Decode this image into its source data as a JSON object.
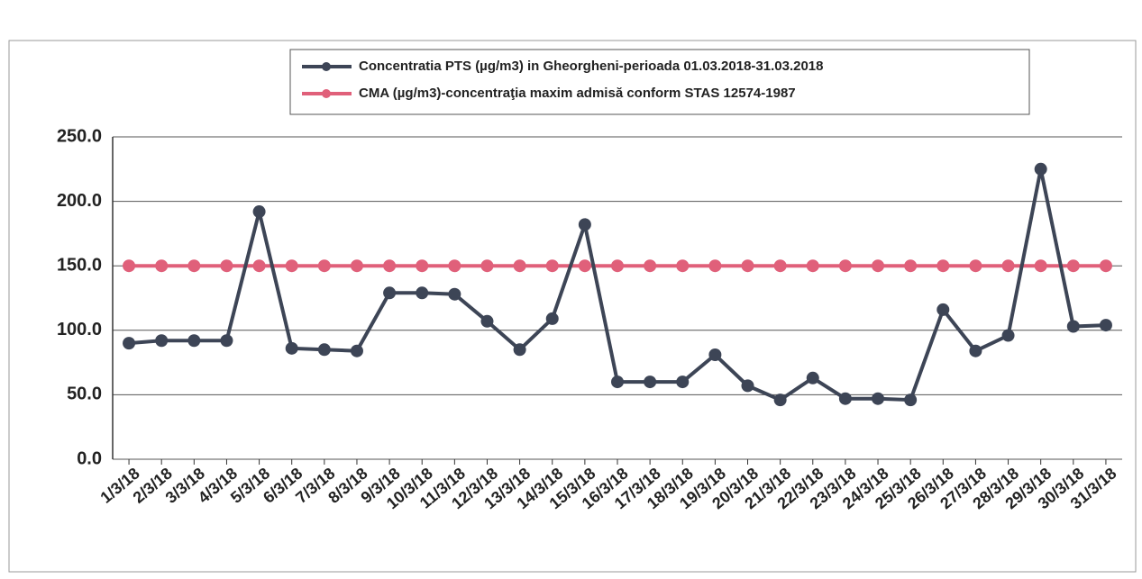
{
  "chart_data": {
    "type": "line",
    "categories": [
      "1/3/18",
      "2/3/18",
      "3/3/18",
      "4/3/18",
      "5/3/18",
      "6/3/18",
      "7/3/18",
      "8/3/18",
      "9/3/18",
      "10/3/18",
      "11/3/18",
      "12/3/18",
      "13/3/18",
      "14/3/18",
      "15/3/18",
      "16/3/18",
      "17/3/18",
      "18/3/18",
      "19/3/18",
      "20/3/18",
      "21/3/18",
      "22/3/18",
      "23/3/18",
      "24/3/18",
      "25/3/18",
      "26/3/18",
      "27/3/18",
      "28/3/18",
      "29/3/18",
      "30/3/18",
      "31/3/18"
    ],
    "series": [
      {
        "name": "Concentratia PTS (µg/m3) in Gheorgheni-perioada 01.03.2018-31.03.2018",
        "color": "#3d4556",
        "values": [
          90,
          92,
          92,
          92,
          192,
          86,
          85,
          84,
          129,
          129,
          128,
          107,
          85,
          109,
          182,
          60,
          60,
          60,
          81,
          57,
          46,
          63,
          47,
          47,
          46,
          116,
          84,
          96,
          225,
          103,
          104
        ]
      },
      {
        "name": "CMA (µg/m3)-concentraţia maxim admisă conform STAS 12574-1987",
        "color": "#e0607a",
        "values": [
          150,
          150,
          150,
          150,
          150,
          150,
          150,
          150,
          150,
          150,
          150,
          150,
          150,
          150,
          150,
          150,
          150,
          150,
          150,
          150,
          150,
          150,
          150,
          150,
          150,
          150,
          150,
          150,
          150,
          150,
          150
        ]
      }
    ],
    "ylim": [
      0,
      250
    ],
    "yticks": [
      {
        "value": 0,
        "label": "0.0"
      },
      {
        "value": 50,
        "label": "50.0"
      },
      {
        "value": 100,
        "label": "100.0"
      },
      {
        "value": 150,
        "label": "150.0"
      },
      {
        "value": 200,
        "label": "200.0"
      },
      {
        "value": 250,
        "label": "250.0"
      }
    ],
    "grid": true,
    "legend": "top"
  }
}
